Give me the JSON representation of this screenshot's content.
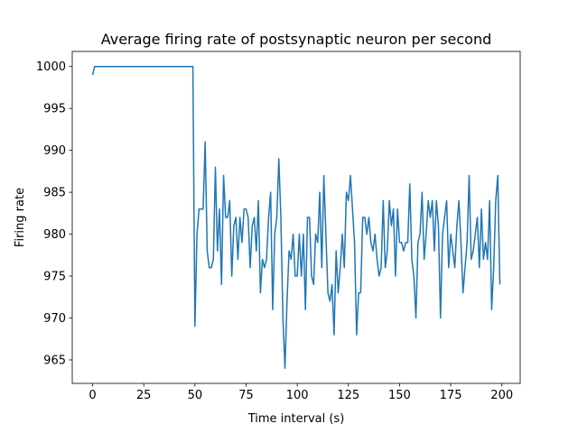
{
  "chart_data": {
    "type": "line",
    "title": "Average firing rate of postsynaptic neuron per second",
    "x_label": "Time interval (s)",
    "y_label": "Firing rate",
    "xlim": [
      -9.95,
      208.95
    ],
    "ylim": [
      962.2,
      1001.8
    ],
    "xticks": [
      0,
      25,
      50,
      75,
      100,
      125,
      150,
      175,
      200
    ],
    "yticks": [
      965,
      970,
      975,
      980,
      985,
      990,
      995,
      1000
    ],
    "grid": false,
    "x": [
      0,
      1,
      2,
      3,
      4,
      5,
      6,
      7,
      8,
      9,
      10,
      11,
      12,
      13,
      14,
      15,
      16,
      17,
      18,
      19,
      20,
      21,
      22,
      23,
      24,
      25,
      26,
      27,
      28,
      29,
      30,
      31,
      32,
      33,
      34,
      35,
      36,
      37,
      38,
      39,
      40,
      41,
      42,
      43,
      44,
      45,
      46,
      47,
      48,
      49,
      50,
      51,
      52,
      53,
      54,
      55,
      56,
      57,
      58,
      59,
      60,
      61,
      62,
      63,
      64,
      65,
      66,
      67,
      68,
      69,
      70,
      71,
      72,
      73,
      74,
      75,
      76,
      77,
      78,
      79,
      80,
      81,
      82,
      83,
      84,
      85,
      86,
      87,
      88,
      89,
      90,
      91,
      92,
      93,
      94,
      95,
      96,
      97,
      98,
      99,
      100,
      101,
      102,
      103,
      104,
      105,
      106,
      107,
      108,
      109,
      110,
      111,
      112,
      113,
      114,
      115,
      116,
      117,
      118,
      119,
      120,
      121,
      122,
      123,
      124,
      125,
      126,
      127,
      128,
      129,
      130,
      131,
      132,
      133,
      134,
      135,
      136,
      137,
      138,
      139,
      140,
      141,
      142,
      143,
      144,
      145,
      146,
      147,
      148,
      149,
      150,
      151,
      152,
      153,
      154,
      155,
      156,
      157,
      158,
      159,
      160,
      161,
      162,
      163,
      164,
      165,
      166,
      167,
      168,
      169,
      170,
      171,
      172,
      173,
      174,
      175,
      176,
      177,
      178,
      179,
      180,
      181,
      182,
      183,
      184,
      185,
      186,
      187,
      188,
      189,
      190,
      191,
      192,
      193,
      194,
      195,
      196,
      197,
      198,
      199
    ],
    "series": [
      {
        "color": "#1f77b4",
        "values": [
          999,
          1000,
          1000,
          1000,
          1000,
          1000,
          1000,
          1000,
          1000,
          1000,
          1000,
          1000,
          1000,
          1000,
          1000,
          1000,
          1000,
          1000,
          1000,
          1000,
          1000,
          1000,
          1000,
          1000,
          1000,
          1000,
          1000,
          1000,
          1000,
          1000,
          1000,
          1000,
          1000,
          1000,
          1000,
          1000,
          1000,
          1000,
          1000,
          1000,
          1000,
          1000,
          1000,
          1000,
          1000,
          1000,
          1000,
          1000,
          1000,
          1000,
          969,
          980,
          983,
          983,
          983,
          991,
          978,
          976,
          976,
          977,
          988,
          978,
          983,
          974,
          987,
          982,
          982,
          984,
          975,
          981,
          982,
          977,
          982,
          979,
          983,
          983,
          982,
          976,
          981,
          982,
          978,
          984,
          973,
          977,
          976,
          977,
          982,
          985,
          971,
          980,
          982,
          989,
          982,
          970,
          964,
          972,
          978,
          977,
          980,
          975,
          975,
          980,
          975,
          980,
          971,
          982,
          982,
          975,
          974,
          980,
          979,
          985,
          976,
          987,
          980,
          973,
          972,
          974,
          968,
          978,
          973,
          976,
          980,
          976,
          985,
          984,
          987,
          983,
          979,
          968,
          973,
          973,
          982,
          982,
          980,
          982,
          979,
          978,
          980,
          977,
          975,
          976,
          984,
          976,
          978,
          984,
          981,
          983,
          975,
          983,
          979,
          979,
          978,
          979,
          979,
          986,
          977,
          975,
          970,
          979,
          980,
          985,
          977,
          980,
          984,
          982,
          984,
          978,
          984,
          981,
          970,
          980,
          982,
          984,
          976,
          980,
          978,
          976,
          981,
          984,
          979,
          973,
          976,
          979,
          987,
          977,
          978,
          980,
          982,
          976,
          983,
          977,
          979,
          977,
          984,
          971,
          976,
          984,
          987,
          974
        ]
      }
    ]
  }
}
